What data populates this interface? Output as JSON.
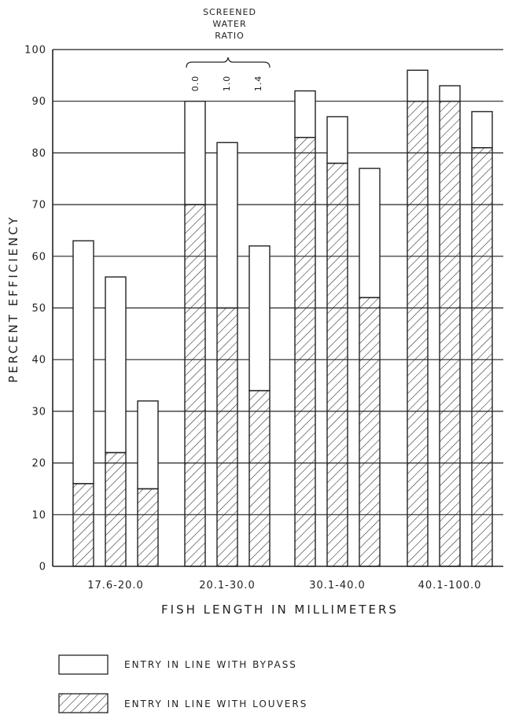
{
  "chart_data": {
    "type": "bar",
    "stacked": true,
    "xlabel": "FISH LENGTH IN MILLIMETERS",
    "ylabel": "PERCENT EFFICIENCY",
    "ylim": [
      0,
      100
    ],
    "yticks": [
      0,
      10,
      20,
      30,
      40,
      50,
      60,
      70,
      80,
      90,
      100
    ],
    "grid": true,
    "annotation": {
      "title_lines": [
        "SCREENED",
        "WATER",
        "RATIO"
      ],
      "ratios": [
        "0.0",
        "1.0",
        "1.4"
      ]
    },
    "groups": [
      {
        "label": "17.6-20.0",
        "total": [
          63,
          56,
          32
        ],
        "louvers": [
          16,
          22,
          15
        ]
      },
      {
        "label": "20.1-30.0",
        "total": [
          90,
          82,
          62
        ],
        "louvers": [
          70,
          50,
          34
        ]
      },
      {
        "label": "30.1-40.0",
        "total": [
          92,
          87,
          77
        ],
        "louvers": [
          83,
          78,
          52
        ]
      },
      {
        "label": "40.1-100.0",
        "total": [
          96,
          93,
          88
        ],
        "louvers": [
          90,
          90,
          81
        ]
      }
    ],
    "legend": [
      {
        "label": "ENTRY IN LINE WITH BYPASS",
        "pattern": "open"
      },
      {
        "label": "ENTRY IN LINE WITH LOUVERS",
        "pattern": "hatched"
      }
    ],
    "colors": {
      "ink": "#222222",
      "paper": "#ffffff"
    }
  }
}
